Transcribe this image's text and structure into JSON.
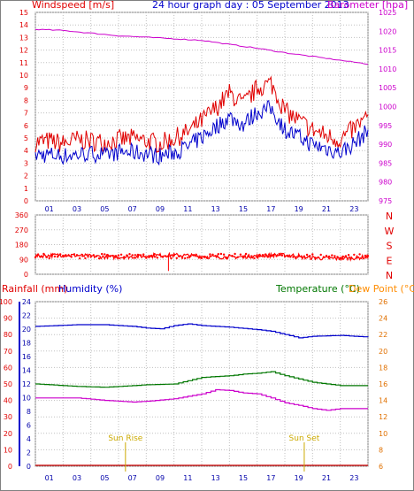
{
  "title": "24 hour graph day : 05 September 2013",
  "colors": {
    "wind": "#e00000",
    "gust_line": "#cc0000",
    "avg": "#0000cc",
    "baro": "#cc00cc",
    "dir": "#ff0000",
    "temp": "#007700",
    "dew": "#ff8c00",
    "grid": "#c0c0c0",
    "axis_blue": "#0000cc",
    "sun": "#ccaa00",
    "rain": "#cc0000"
  },
  "chart_data": [
    {
      "type": "line",
      "name": "wind-baro-panel",
      "left_axis_label": "Windspeed [m/s]",
      "right_axis_label": "Barometer [hpa]",
      "left_ylim": [
        0,
        15
      ],
      "right_ylim": [
        975,
        1025
      ],
      "left_ticks": [
        0,
        1,
        2,
        3,
        4,
        5,
        6,
        7,
        8,
        9,
        10,
        11,
        12,
        13,
        14,
        15
      ],
      "right_ticks": [
        975,
        980,
        985,
        990,
        995,
        1000,
        1005,
        1010,
        1015,
        1020,
        1025
      ],
      "x_ticks": [
        "01",
        "03",
        "05",
        "07",
        "09",
        "11",
        "13",
        "15",
        "17",
        "19",
        "21",
        "23"
      ],
      "grid": true,
      "series": [
        {
          "key": "gust",
          "x": [
            0,
            1,
            2,
            3,
            4,
            5,
            6,
            7,
            8,
            9,
            10,
            11,
            12,
            13,
            14,
            15,
            16,
            17,
            18,
            19,
            20,
            21,
            22,
            23,
            24
          ],
          "values": [
            4.5,
            4.6,
            4.4,
            4.7,
            4.6,
            4.5,
            4.7,
            4.8,
            4.6,
            4.4,
            4.8,
            5.3,
            6.2,
            7.2,
            8.4,
            7.5,
            8.8,
            9.2,
            7.0,
            6.2,
            5.5,
            5.0,
            4.7,
            5.6,
            6.5
          ]
        },
        {
          "key": "avg",
          "x": [
            0,
            1,
            2,
            3,
            4,
            5,
            6,
            7,
            8,
            9,
            10,
            11,
            12,
            13,
            14,
            15,
            16,
            17,
            18,
            19,
            20,
            21,
            22,
            23,
            24
          ],
          "values": [
            3.6,
            3.6,
            3.5,
            3.6,
            3.7,
            3.6,
            3.8,
            3.8,
            3.7,
            3.5,
            3.8,
            4.2,
            5.0,
            5.8,
            6.6,
            6.0,
            7.0,
            7.3,
            5.6,
            5.0,
            4.4,
            4.1,
            3.8,
            4.5,
            5.5
          ]
        },
        {
          "key": "baro",
          "x": [
            0,
            2,
            4,
            6,
            8,
            10,
            12,
            14,
            16,
            18,
            20,
            22,
            24
          ],
          "values": [
            1020.5,
            1020.2,
            1019.5,
            1018.8,
            1018.4,
            1018.0,
            1017.6,
            1016.5,
            1015.5,
            1014.3,
            1013.3,
            1012.3,
            1011.3
          ]
        }
      ]
    },
    {
      "type": "scatter",
      "name": "direction-panel",
      "left_ticks": [
        0,
        90,
        180,
        270,
        360
      ],
      "ylim": [
        0,
        360
      ],
      "compass_labels": [
        "N",
        "W",
        "S",
        "E",
        "N"
      ],
      "x_ticks": [],
      "grid": true,
      "series": [
        {
          "key": "dir",
          "mean": 110,
          "min_wave": 95,
          "max_wave": 130
        }
      ]
    },
    {
      "type": "line",
      "name": "rain-hum-temp-panel",
      "left_label_rain": "Rainfall (mm)",
      "left_label_hum": "Humidity (%)",
      "right_label_temp": "Temperature (°C)",
      "right_label_dew": "Dew Point (°C)",
      "left_ylim": [
        0,
        100
      ],
      "right_ylim": [
        6,
        26
      ],
      "left_ticks": [
        0,
        10,
        20,
        30,
        40,
        50,
        60,
        70,
        80,
        90,
        100
      ],
      "inner_ticks": [
        0,
        2,
        4,
        6,
        8,
        10,
        12,
        14,
        16,
        18,
        20,
        22,
        24
      ],
      "right_ticks": [
        6,
        8,
        10,
        12,
        14,
        16,
        18,
        20,
        22,
        24,
        26
      ],
      "x_ticks": [
        "01",
        "03",
        "05",
        "07",
        "09",
        "11",
        "13",
        "15",
        "17",
        "19",
        "21",
        "23"
      ],
      "sun_rise_label": "Sun Rise",
      "sun_set_label": "Sun Set",
      "sun_rise_hour": 6.5,
      "sun_set_hour": 19.4,
      "grid": true,
      "series": [
        {
          "key": "humidity_blue",
          "x": [
            0,
            3,
            5,
            7,
            8,
            9,
            10,
            11,
            12,
            14,
            16,
            17,
            18,
            19,
            20,
            22,
            24
          ],
          "values": [
            23.0,
            23.2,
            23.2,
            23.0,
            22.8,
            22.7,
            23.1,
            23.3,
            23.1,
            22.9,
            22.6,
            22.4,
            22.0,
            21.6,
            21.8,
            21.9,
            21.7
          ]
        },
        {
          "key": "temp",
          "x": [
            0,
            3,
            5,
            7,
            8,
            10,
            12,
            14,
            15,
            16,
            17,
            18,
            19,
            20,
            22,
            24
          ],
          "values": [
            16.0,
            15.7,
            15.6,
            15.8,
            15.9,
            16.0,
            16.8,
            17.0,
            17.2,
            17.3,
            17.5,
            17.0,
            16.6,
            16.2,
            15.8,
            15.8
          ]
        },
        {
          "key": "dew",
          "x": [
            0,
            3,
            5,
            7,
            8,
            10,
            12,
            13,
            14,
            15,
            16,
            17,
            18,
            19,
            20,
            21,
            22,
            24
          ],
          "values": [
            14.3,
            14.3,
            14.0,
            13.8,
            13.9,
            14.2,
            14.8,
            15.3,
            15.2,
            14.9,
            14.8,
            14.3,
            13.7,
            13.4,
            13.0,
            12.8,
            13.0,
            13.0
          ]
        },
        {
          "key": "rain",
          "x": [
            0,
            24
          ],
          "values": [
            0,
            0
          ]
        }
      ]
    }
  ]
}
